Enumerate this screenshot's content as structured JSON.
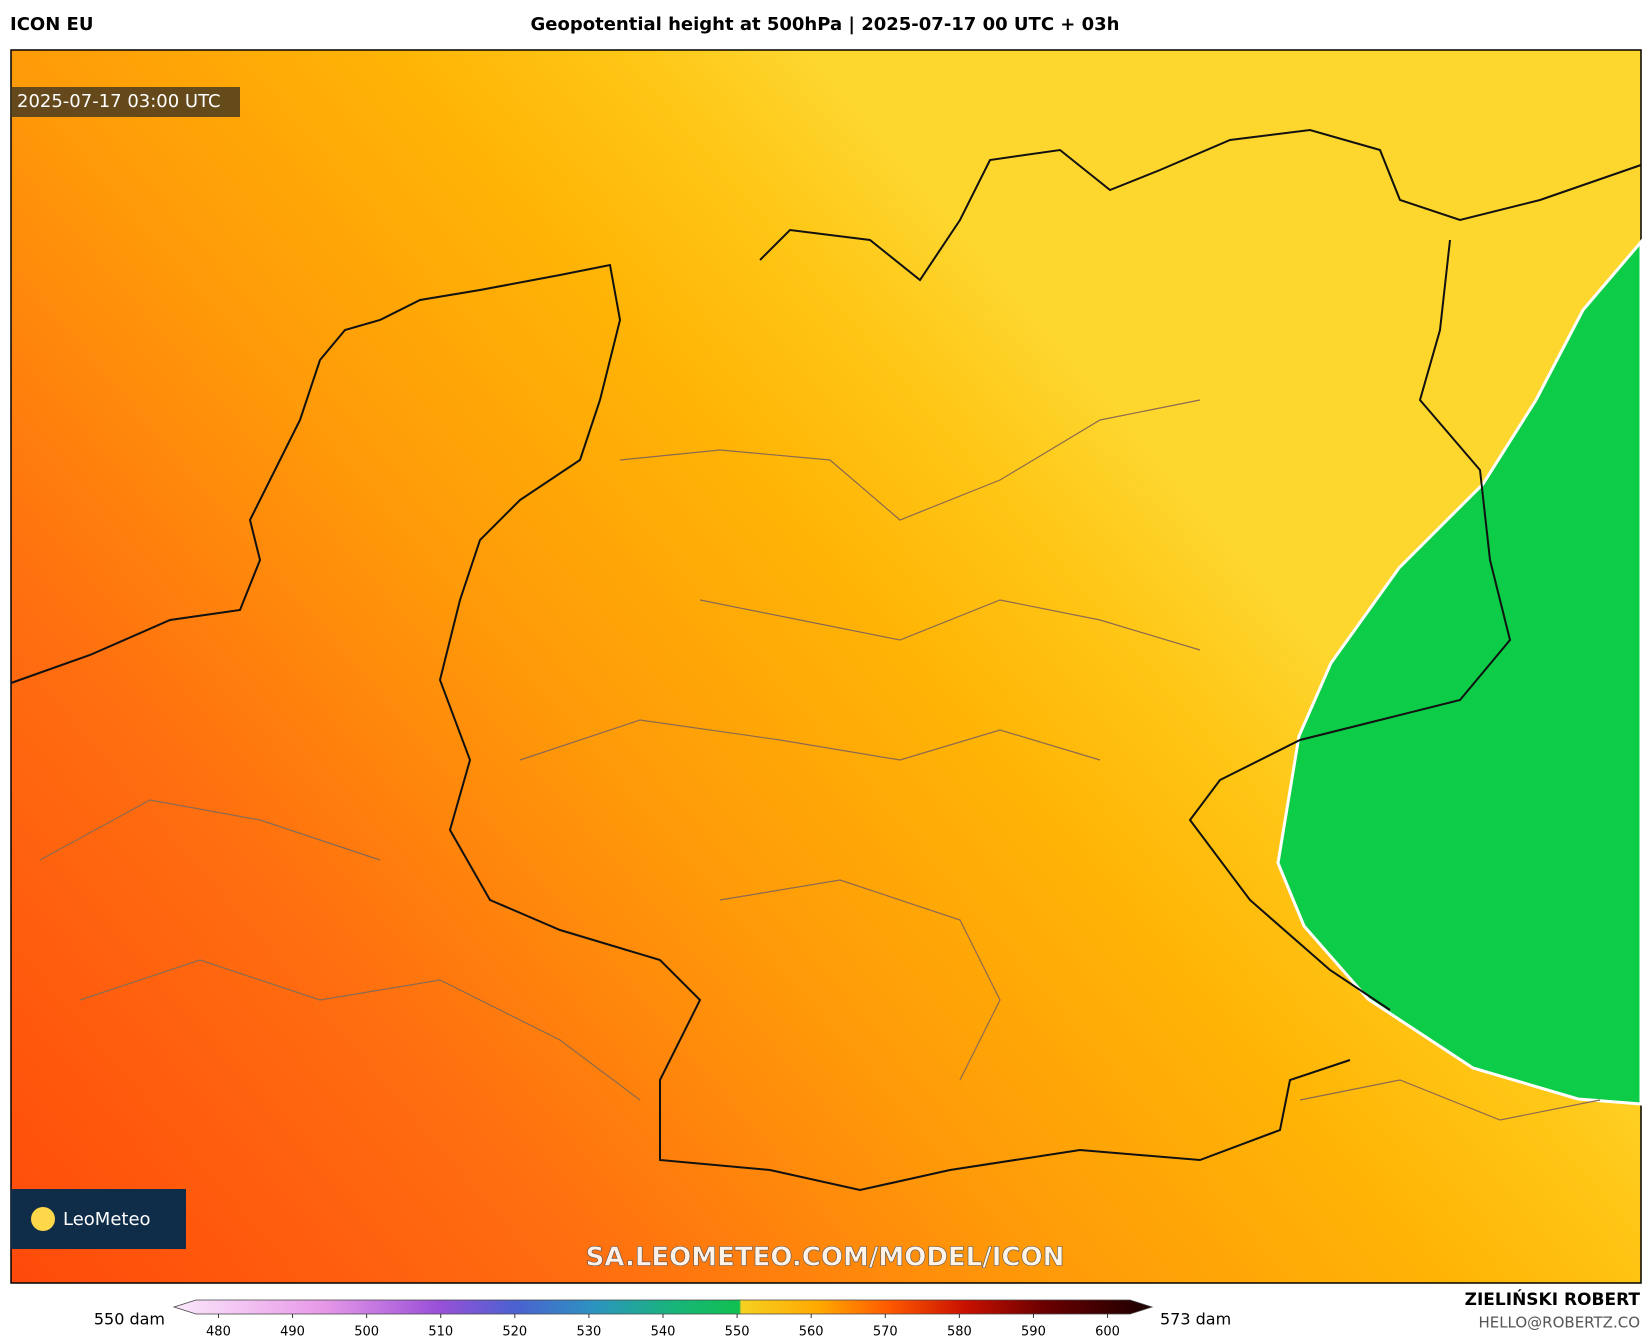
{
  "header": {
    "model": "ICON EU",
    "title": "Geopotential height at 500hPa | 2025-07-17 00 UTC + 03h"
  },
  "map": {
    "timestamp": "2025-07-17 03:00 UTC",
    "logo": "LeoMeteo",
    "watermark": "SA.LEOMETEO.COM/MODEL/ICON"
  },
  "legend": {
    "min_label": "550 dam",
    "max_label": "573 dam",
    "lim": [
      474,
      606
    ],
    "ticks": [
      480,
      490,
      500,
      510,
      520,
      530,
      540,
      550,
      560,
      570,
      580,
      590,
      600
    ]
  },
  "footer": {
    "author": "ZIELIŃSKI ROBERT",
    "email": "HELLO@ROBERTZ.CO"
  }
}
